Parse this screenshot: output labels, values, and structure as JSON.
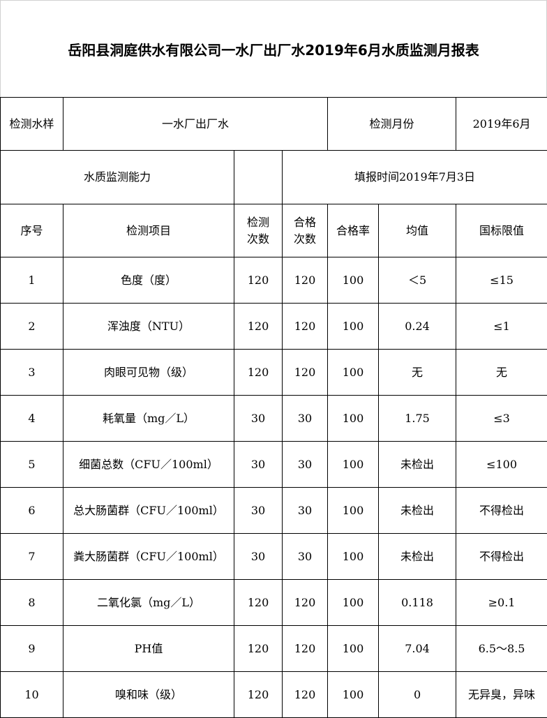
{
  "title": "岳阳县洞庭供水有限公司一水厂出厂水2019年6月水质监测月报表",
  "info": {
    "sample_label": "检测水样",
    "sample_value": "一水厂出厂水",
    "month_label": "检测月份",
    "month_value": "2019年6月",
    "capability_label": "水质监测能力",
    "fill_time": "填报时间2019年7月3日"
  },
  "headers": [
    "序号",
    "检测项目",
    "检测次数",
    "合格次数",
    "合格率",
    "均值",
    "国标限值"
  ],
  "rows": [
    [
      "1",
      "色度（度）",
      "120",
      "120",
      "100",
      "＜5",
      "≤15"
    ],
    [
      "2",
      "浑浊度（NTU）",
      "120",
      "120",
      "100",
      "0.24",
      "≤1"
    ],
    [
      "3",
      "肉眼可见物（级）",
      "120",
      "120",
      "100",
      "无",
      "无"
    ],
    [
      "4",
      "耗氧量（mg／L）",
      "30",
      "30",
      "100",
      "1.75",
      "≤3"
    ],
    [
      "5",
      "细菌总数（CFU／100ml）",
      "30",
      "30",
      "100",
      "未检出",
      "≤100"
    ],
    [
      "6",
      "总大肠菌群（CFU／100ml）",
      "30",
      "30",
      "100",
      "未检出",
      "不得检出"
    ],
    [
      "7",
      "粪大肠菌群（CFU／100ml）",
      "30",
      "30",
      "100",
      "未检出",
      "不得检出"
    ],
    [
      "8",
      "二氧化氯（mg／L）",
      "120",
      "120",
      "100",
      "0.118",
      "≥0.1"
    ],
    [
      "9",
      "PH值",
      "120",
      "120",
      "100",
      "7.04",
      "6.5～8.5"
    ],
    [
      "10",
      "嗅和味（级）",
      "120",
      "120",
      "100",
      "0",
      "无异臭，异味"
    ]
  ]
}
